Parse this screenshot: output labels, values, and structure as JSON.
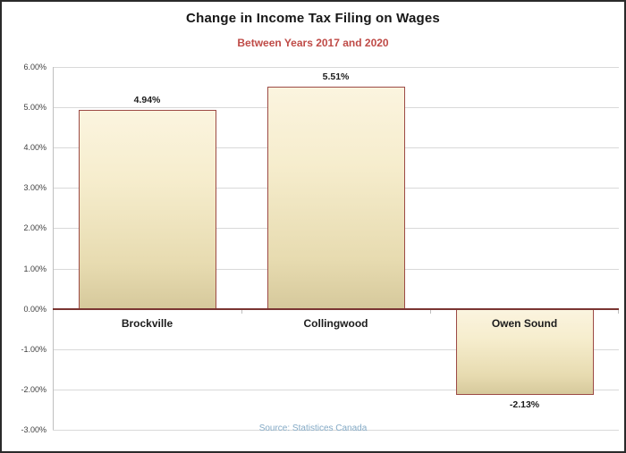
{
  "page": {
    "title": "Change in Income Tax Filing on Wages",
    "subtitle": "Between Years 2017 and 2020",
    "source_note": "Source: Statistices Canada"
  },
  "chart_data": {
    "type": "bar",
    "title": "Change in Income Tax Filing on Wages",
    "subtitle": "Between Years 2017 and 2020",
    "categories": [
      "Brockville",
      "Collingwood",
      "Owen Sound"
    ],
    "values": [
      4.94,
      5.51,
      -2.13
    ],
    "value_labels": [
      "4.94%",
      "5.51%",
      "-2.13%"
    ],
    "xlabel": "",
    "ylabel": "",
    "ylim": [
      -3,
      6
    ],
    "yticks": [
      {
        "value": 6,
        "label": "6.00%"
      },
      {
        "value": 5,
        "label": "5.00%"
      },
      {
        "value": 4,
        "label": "4.00%"
      },
      {
        "value": 3,
        "label": "3.00%"
      },
      {
        "value": 2,
        "label": "2.00%"
      },
      {
        "value": 1,
        "label": "1.00%"
      },
      {
        "value": 0,
        "label": "0.00%"
      },
      {
        "value": -1,
        "label": "-1.00%"
      },
      {
        "value": -2,
        "label": "-2.00%"
      },
      {
        "value": -3,
        "label": "-3.00%"
      }
    ],
    "grid": true,
    "legend": "none",
    "annotation": "Source: Statistices Canada",
    "colors": {
      "bar_fill_top": "#fbf4df",
      "bar_fill_bottom": "#d6c99c",
      "bar_border": "#9c4a45",
      "zero_axis_line": "#7a3532",
      "gridline": "#d9d9d9",
      "title_text": "#161616",
      "subtitle_text": "#bf4b47",
      "source_text": "#84aac6"
    }
  }
}
